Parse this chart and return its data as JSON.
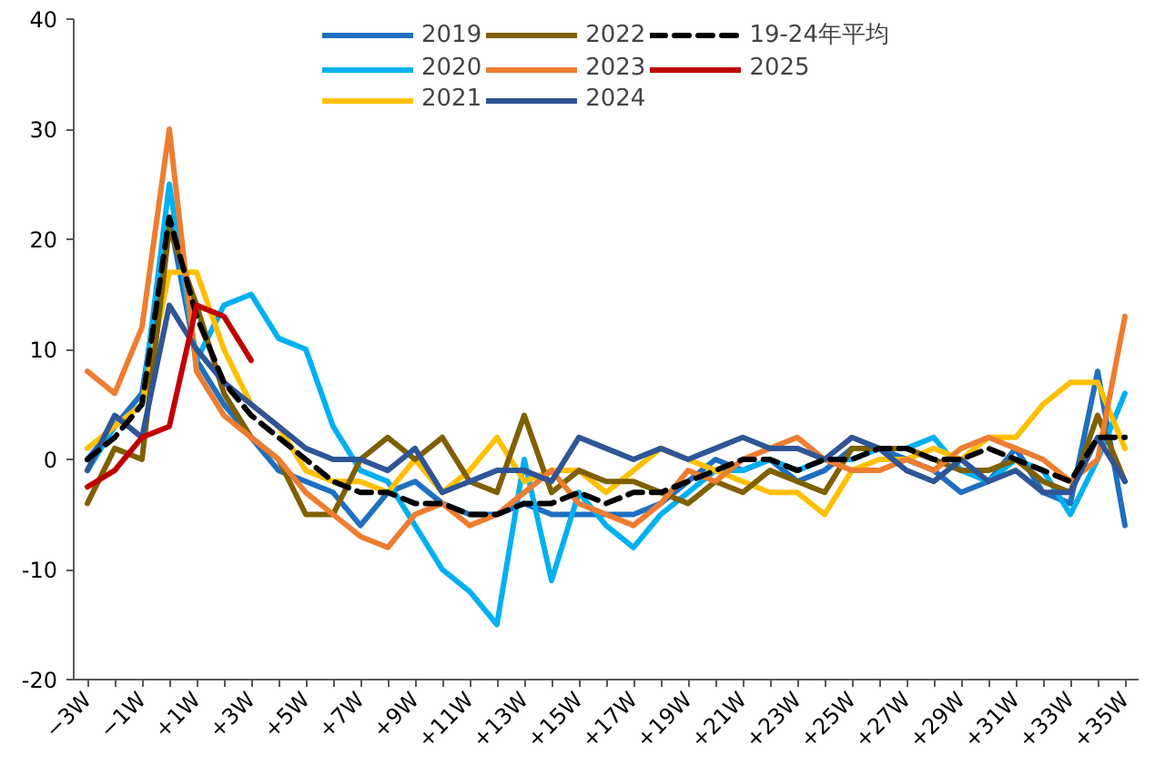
{
  "chart_data": {
    "type": "line",
    "categories": [
      "−3W",
      null,
      "−1W",
      null,
      "+1W",
      null,
      "+3W",
      null,
      "+5W",
      null,
      "+7W",
      null,
      "+9W",
      null,
      "+11W",
      null,
      "+13W",
      null,
      "+15W",
      null,
      "+17W",
      null,
      "+19W",
      null,
      "+21W",
      null,
      "+23W",
      null,
      "+25W",
      null,
      "+27W",
      null,
      "+29W",
      null,
      "+31W",
      null,
      "+33W",
      null,
      "+35W"
    ],
    "ylim": [
      -20,
      40
    ],
    "yticks": [
      -20,
      -10,
      0,
      10,
      20,
      30,
      40
    ],
    "grid": false,
    "legend": "top",
    "series": [
      {
        "name": "2019",
        "color": "#1f6fc0",
        "values": [
          0,
          3,
          6,
          22,
          9,
          5,
          2,
          -1,
          -2,
          -3,
          -6,
          -3,
          -2,
          -4,
          -5,
          -5,
          -4,
          -5,
          -5,
          -5,
          -5,
          -4,
          -2,
          0,
          -1,
          0,
          -2,
          -1,
          1,
          1,
          0,
          -1,
          -3,
          -2,
          1,
          -3,
          -4,
          8,
          -6
        ]
      },
      {
        "name": "2020",
        "color": "#00b0f0",
        "values": [
          -1,
          3,
          5,
          25,
          9,
          14,
          15,
          11,
          10,
          3,
          -1,
          -2,
          -6,
          -10,
          -12,
          -15,
          0,
          -11,
          -3,
          -6,
          -8,
          -5,
          -3,
          -1,
          -1,
          0,
          -1,
          0,
          0,
          1,
          1,
          2,
          -1,
          -2,
          0,
          -1,
          -5,
          0,
          6
        ]
      },
      {
        "name": "2021",
        "color": "#ffc000",
        "values": [
          1,
          3,
          5,
          17,
          17,
          10,
          5,
          3,
          -1,
          -2,
          -2,
          -3,
          0,
          -3,
          -1,
          2,
          -2,
          -1,
          -1,
          -3,
          -1,
          1,
          0,
          -1,
          -2,
          -3,
          -3,
          -5,
          -1,
          0,
          0,
          1,
          0,
          2,
          2,
          5,
          7,
          7,
          1
        ]
      },
      {
        "name": "2022",
        "color": "#7f6000",
        "values": [
          -4,
          1,
          0,
          21,
          14,
          6,
          2,
          0,
          -5,
          -5,
          0,
          2,
          0,
          2,
          -2,
          -3,
          4,
          -3,
          -1,
          -2,
          -2,
          -3,
          -4,
          -2,
          -3,
          -1,
          -2,
          -3,
          1,
          1,
          1,
          0,
          -1,
          -1,
          0,
          -2,
          -3,
          4,
          -2
        ]
      },
      {
        "name": "2023",
        "color": "#ed7d31",
        "values": [
          8,
          6,
          12,
          30,
          8,
          4,
          2,
          0,
          -3,
          -5,
          -7,
          -8,
          -5,
          -4,
          -6,
          -5,
          -3,
          -1,
          -4,
          -5,
          -6,
          -4,
          -1,
          -2,
          0,
          1,
          2,
          0,
          -1,
          -1,
          0,
          -1,
          1,
          2,
          1,
          0,
          -2,
          0,
          13
        ]
      },
      {
        "name": "2024",
        "color": "#2f5597",
        "values": [
          -1,
          4,
          2,
          14,
          10,
          7,
          5,
          3,
          1,
          0,
          0,
          -1,
          1,
          -3,
          -2,
          -1,
          -1,
          -2,
          2,
          1,
          0,
          1,
          0,
          1,
          2,
          1,
          1,
          0,
          2,
          1,
          -1,
          -2,
          0,
          -2,
          -1,
          -3,
          -3,
          2,
          -2
        ]
      },
      {
        "name": "19-24年平均",
        "color": "#000000",
        "line_style": "dashed",
        "values": [
          0,
          2,
          5,
          22,
          13,
          7,
          4,
          2,
          0,
          -2,
          -3,
          -3,
          -4,
          -4,
          -5,
          -5,
          -4,
          -4,
          -3,
          -4,
          -3,
          -3,
          -2,
          -1,
          0,
          0,
          -1,
          0,
          0,
          1,
          1,
          0,
          0,
          1,
          0,
          -1,
          -2,
          2,
          2
        ]
      },
      {
        "name": "2025",
        "color": "#c00000",
        "values": [
          -2.5,
          -1,
          2,
          3,
          14,
          13,
          9,
          null,
          null,
          null,
          null,
          null,
          null,
          null,
          null,
          null,
          null,
          null,
          null,
          null,
          null,
          null,
          null,
          null,
          null,
          null,
          null,
          null,
          null,
          null,
          null,
          null,
          null,
          null,
          null,
          null,
          null,
          null,
          null
        ]
      }
    ]
  }
}
